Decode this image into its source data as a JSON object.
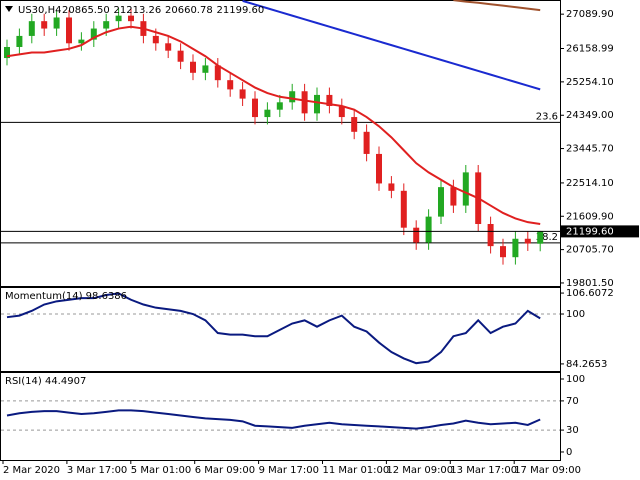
{
  "header": {
    "symbol": "US30,H4",
    "ohlc_labels": [
      "20865.50",
      "21213.26",
      "20660.78",
      "21199.60"
    ]
  },
  "chart_data": [
    {
      "type": "candlestick",
      "last_price_label": "21199.60",
      "open": [
        25900,
        26200,
        26500,
        26900,
        26700,
        27000,
        26300,
        26400,
        26700,
        26900,
        27050,
        26900,
        26500,
        26300,
        26100,
        25800,
        25500,
        25700,
        25300,
        25050,
        24800,
        24300,
        24500,
        24700,
        25000,
        24400,
        24900,
        24600,
        24300,
        23900,
        23300,
        22500,
        22300,
        21300,
        20900,
        21600,
        22400,
        21900,
        22800,
        21400,
        20800,
        20500,
        21000,
        20865.5
      ],
      "high": [
        26400,
        26700,
        27100,
        27100,
        27200,
        27200,
        26600,
        26900,
        27100,
        27250,
        27250,
        27100,
        26700,
        26500,
        26300,
        26000,
        25900,
        25900,
        25500,
        25250,
        25000,
        24700,
        24900,
        25200,
        25200,
        25100,
        25100,
        24800,
        24500,
        24100,
        23500,
        22700,
        22500,
        21500,
        21800,
        22600,
        22600,
        23000,
        23000,
        21600,
        21000,
        21200,
        21200,
        21213.26
      ],
      "low": [
        25700,
        26000,
        26300,
        26500,
        26500,
        26100,
        26100,
        26200,
        26500,
        26700,
        26700,
        26300,
        26100,
        25900,
        25600,
        25300,
        25300,
        25100,
        24850,
        24600,
        24100,
        24100,
        24300,
        24500,
        24200,
        24200,
        24400,
        24100,
        23700,
        23100,
        22300,
        22100,
        21100,
        20700,
        20700,
        21400,
        21700,
        21700,
        21200,
        20600,
        20300,
        20300,
        20670,
        20660.78
      ],
      "close": [
        26200,
        26500,
        26900,
        26700,
        27000,
        26300,
        26400,
        26700,
        26900,
        27050,
        26900,
        26500,
        26300,
        26100,
        25800,
        25500,
        25700,
        25300,
        25050,
        24800,
        24300,
        24500,
        24700,
        25000,
        24400,
        24900,
        24600,
        24300,
        23900,
        23300,
        22500,
        22300,
        21300,
        20900,
        21600,
        22400,
        21900,
        22800,
        21400,
        20800,
        20500,
        21000,
        20870,
        21199.6
      ],
      "up_color": "#22a822",
      "down_color": "#e02020",
      "ma": [
        {
          "color": "#e02020",
          "values": [
            25950,
            26000,
            26050,
            26050,
            26100,
            26150,
            26250,
            26450,
            26600,
            26700,
            26750,
            26700,
            26600,
            26500,
            26350,
            26150,
            25950,
            25700,
            25500,
            25300,
            25100,
            24950,
            24850,
            24800,
            24750,
            24700,
            24650,
            24600,
            24500,
            24300,
            24050,
            23750,
            23400,
            23050,
            22800,
            22600,
            22400,
            22250,
            22100,
            21900,
            21700,
            21550,
            21450,
            21400
          ]
        },
        {
          "color": "#1a2ad0",
          "values": [
            null,
            null,
            null,
            null,
            null,
            null,
            null,
            null,
            null,
            null,
            null,
            null,
            null,
            null,
            null,
            null,
            null,
            null,
            null,
            27450,
            27350,
            27250,
            27150,
            27050,
            26950,
            26850,
            26750,
            26650,
            26550,
            26450,
            26350,
            26250,
            26150,
            26050,
            25950,
            25850,
            25750,
            25650,
            25550,
            25450,
            25350,
            25250,
            25150,
            25050
          ]
        },
        {
          "color": "#a0522d",
          "values": [
            null,
            null,
            null,
            null,
            null,
            null,
            null,
            null,
            null,
            null,
            null,
            null,
            null,
            null,
            null,
            null,
            null,
            null,
            null,
            null,
            null,
            null,
            null,
            null,
            null,
            null,
            null,
            null,
            null,
            null,
            null,
            null,
            null,
            null,
            null,
            null,
            27470,
            27430,
            27400,
            27360,
            27320,
            27280,
            27240,
            27200
          ]
        }
      ],
      "levels": [
        {
          "value": 24156,
          "label": "23.6"
        },
        {
          "value": 20890,
          "label": "38.2"
        }
      ],
      "ylim": [
        19719,
        27474
      ],
      "yticks": [
        {
          "value": 27089.9,
          "label": "27089.90"
        },
        {
          "value": 26158.99,
          "label": "26158.99"
        },
        {
          "value": 25254.1,
          "label": "25254.10"
        },
        {
          "value": 24349,
          "label": "24349.00"
        },
        {
          "value": 23445.7,
          "label": "23445.70"
        },
        {
          "value": 22514.1,
          "label": "22514.10"
        },
        {
          "value": 21609.9,
          "label": "21609.90"
        },
        {
          "value": 20705.7,
          "label": "20705.70"
        },
        {
          "value": 19801.5,
          "label": "19801.50"
        }
      ]
    },
    {
      "type": "line",
      "title": "Momentum(14) 98.6386",
      "color": "#0a1a80",
      "values": [
        99,
        99.5,
        101,
        103,
        104,
        104.5,
        105,
        105,
        106,
        106.5,
        104.5,
        103,
        102,
        101.5,
        101,
        100,
        98,
        94,
        93.5,
        93.5,
        93,
        93,
        95,
        97,
        98,
        96,
        98,
        99.5,
        96,
        94.5,
        91,
        88,
        86,
        84.5,
        85,
        88,
        93,
        94,
        98,
        94,
        96,
        97,
        101,
        98.6386
      ],
      "ylim": [
        82.03,
        108.52
      ],
      "yticks": [
        106.6072,
        100,
        84.2653
      ],
      "dashed_levels": [
        100
      ]
    },
    {
      "type": "line",
      "title": "RSI(14) 44.4907",
      "color": "#0a1a80",
      "values": [
        50,
        53,
        55,
        56,
        56,
        54,
        52,
        53,
        55,
        57,
        57,
        56,
        54,
        52,
        50,
        48,
        46,
        45,
        44,
        42,
        36,
        35,
        34,
        33,
        36,
        38,
        40,
        38,
        37,
        36,
        35,
        34,
        33,
        32,
        34,
        37,
        39,
        43,
        40,
        38,
        39,
        40,
        37,
        44.4907
      ],
      "ylim": [
        -11,
        109.6
      ],
      "yticks": [
        100,
        70,
        30,
        0
      ],
      "dashed_levels": [
        70,
        30
      ]
    }
  ],
  "time_axis": {
    "labels": [
      "2 Mar 2020",
      "3 Mar 17:00",
      "5 Mar 01:00",
      "6 Mar 09:00",
      "9 Mar 17:00",
      "11 Mar 01:00",
      "12 Mar 09:00",
      "13 Mar 17:00",
      "17 Mar 09:00"
    ]
  }
}
